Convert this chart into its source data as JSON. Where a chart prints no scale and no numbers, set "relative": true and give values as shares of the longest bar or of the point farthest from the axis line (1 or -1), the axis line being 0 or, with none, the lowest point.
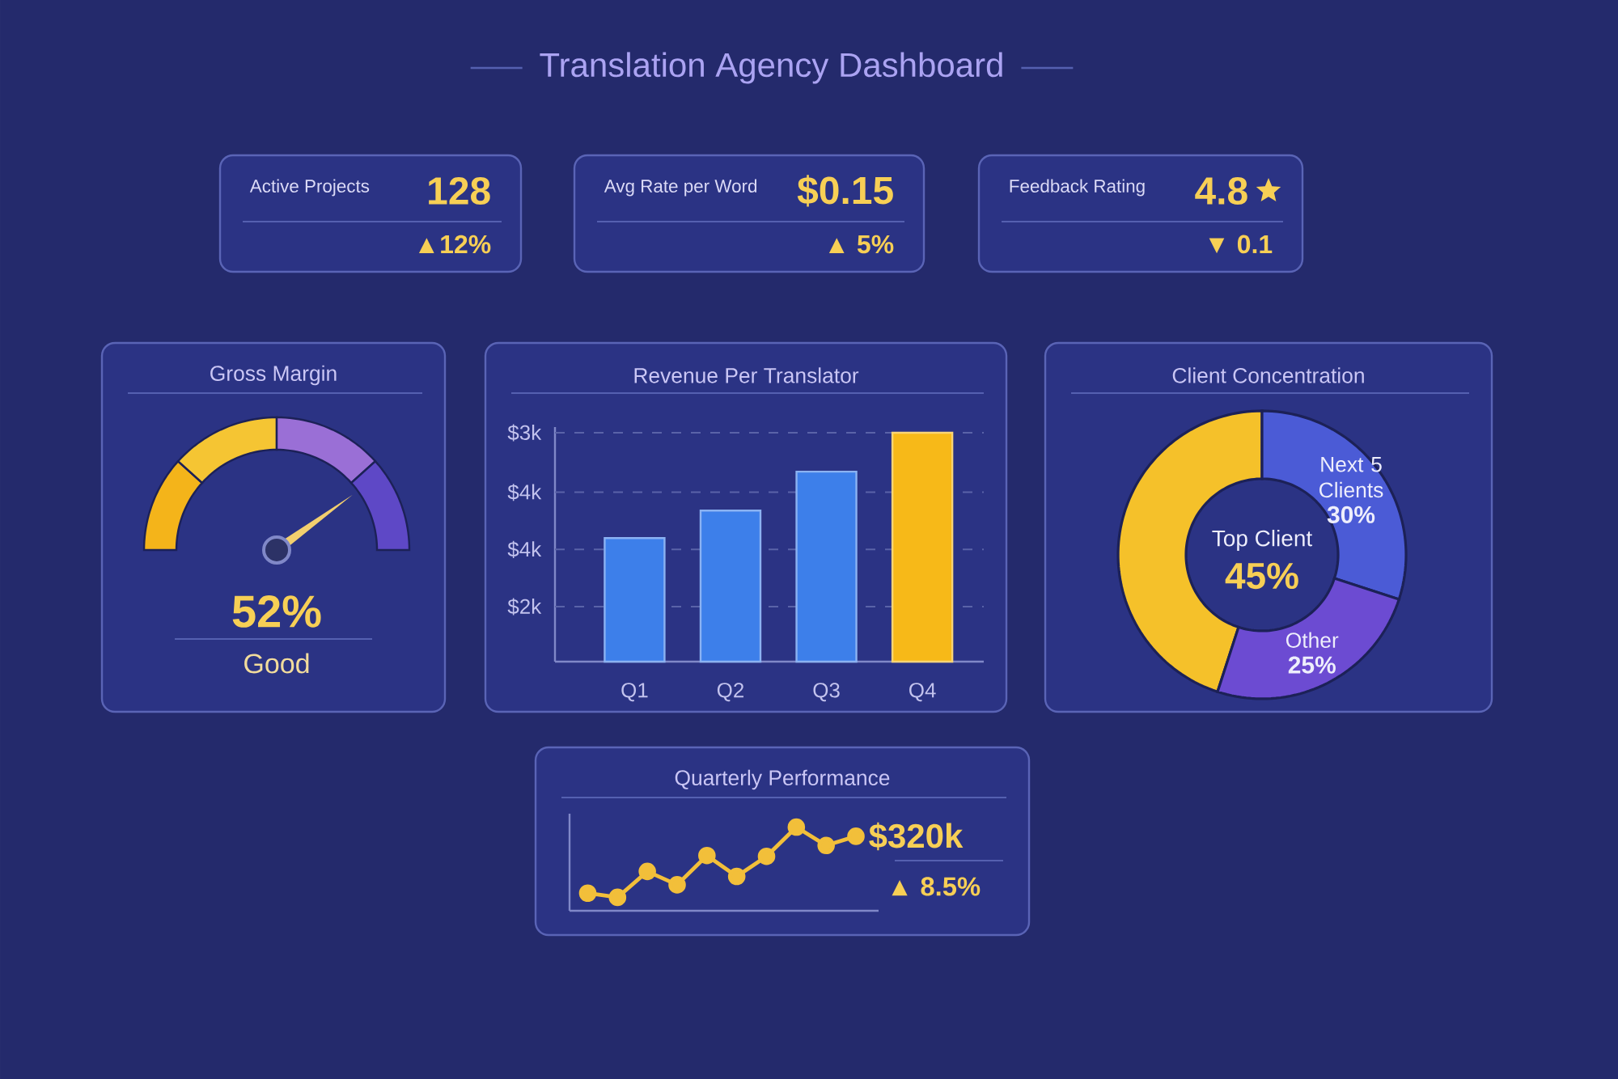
{
  "chart_data": [
    {
      "type": "other",
      "title": "Translation Agency Dashboard"
    },
    {
      "type": "other",
      "title": "Active Projects",
      "annotations": [
        "128",
        "▲12%"
      ]
    },
    {
      "type": "other",
      "title": "Avg Rate per Word",
      "annotations": [
        "$0.15",
        "▲ 5%"
      ]
    },
    {
      "type": "other",
      "title": "Feedback Rating",
      "annotations": [
        "4.8",
        "▼ 0.1"
      ]
    },
    {
      "type": "other",
      "title": "Gross Margin",
      "annotations": [
        "52%",
        "Good"
      ]
    },
    {
      "type": "bar",
      "title": "Revenue Per Translator",
      "categories": [
        "Q1",
        "Q2",
        "Q3",
        "Q4"
      ],
      "values": [
        0.54,
        0.66,
        0.83,
        1
      ],
      "relative": true,
      "colors": [
        "#3d7fea",
        "#3d7fea",
        "#3d7fea",
        "#f7b918"
      ],
      "ref_lines": [
        {
          "axis": "y",
          "value": 1,
          "label": "$3k",
          "line_style": "dashed",
          "color": "#5a63a8"
        },
        {
          "axis": "y",
          "value": 0.74,
          "label": "$4k",
          "line_style": "dashed",
          "color": "#5a63a8"
        },
        {
          "axis": "y",
          "value": 0.49,
          "label": "$4k",
          "line_style": "dashed",
          "color": "#5a63a8"
        },
        {
          "axis": "y",
          "value": 0.24,
          "label": "$2k",
          "line_style": "dashed",
          "color": "#5a63a8"
        }
      ]
    },
    {
      "type": "donut",
      "title": "Client Concentration",
      "categories": [
        "Top Client",
        "Next 5 Clients",
        "Other"
      ],
      "values": [
        45,
        30,
        25
      ],
      "value_labels": [
        "45%",
        "30%",
        "25%"
      ],
      "colors": [
        "#f5c12a",
        "#4b5bd6",
        "#6c4bd2"
      ]
    },
    {
      "type": "line",
      "title": "Quarterly Performance",
      "categories": [
        null,
        null,
        null,
        null,
        null,
        null,
        null,
        null,
        null,
        null
      ],
      "values": [
        0.21,
        0.16,
        0.47,
        0.31,
        0.66,
        0.41,
        0.65,
        1,
        0.78,
        0.89
      ],
      "relative": true,
      "color": "#f2bf3a",
      "marker": "circle",
      "annotations": [
        "$320k",
        "▲ 8.5%"
      ]
    }
  ]
}
